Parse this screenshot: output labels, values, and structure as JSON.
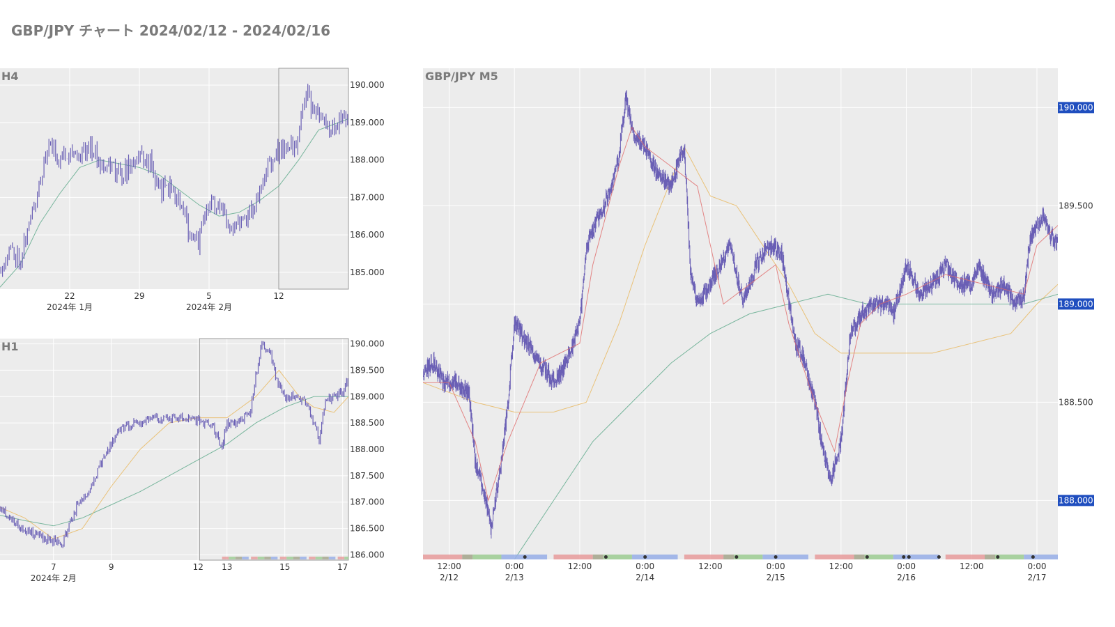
{
  "title": "GBP/JPY チャート 2024/02/12 - 2024/02/16",
  "colors": {
    "plot_bg": "#ececec",
    "grid": "#ffffff",
    "candle": "#6a5fb5",
    "ma_red": "#e06a6a",
    "ma_orange": "#e8b75a",
    "ma_green": "#5aa888",
    "badge": "#1f4ebf",
    "session_tokyo": "#e79b9b",
    "session_london": "#9ccd92",
    "session_ny": "#96aee8",
    "session_overlap": "#a3a58b",
    "event_dot": "#333333"
  },
  "chart_data": [
    {
      "id": "h4",
      "type": "candlestick",
      "title": "H4",
      "y_ticks": [
        "190.000",
        "189.000",
        "188.000",
        "187.000",
        "186.000",
        "185.000"
      ],
      "y_tick_values": [
        190,
        189,
        188,
        187,
        186,
        185
      ],
      "ylim": [
        184.55,
        190.45
      ],
      "x_range_days": [
        15,
        50
      ],
      "x_ticks": [
        {
          "label": "22",
          "sub": "2024年 1月",
          "day": 22
        },
        {
          "label": "29",
          "sub": "",
          "day": 29
        },
        {
          "label": "5",
          "sub": "2024年 2月",
          "day": 36
        },
        {
          "label": "12",
          "sub": "",
          "day": 43
        }
      ],
      "highlight_range_days": [
        43,
        50
      ],
      "price_path": [
        [
          15,
          185.1
        ],
        [
          16,
          185.6
        ],
        [
          17,
          185.4
        ],
        [
          18,
          186.3
        ],
        [
          19,
          187.5
        ],
        [
          20,
          188.4
        ],
        [
          21,
          188.0
        ],
        [
          22,
          188.3
        ],
        [
          23,
          188.1
        ],
        [
          24,
          188.4
        ],
        [
          25,
          188.0
        ],
        [
          26,
          187.9
        ],
        [
          27,
          187.6
        ],
        [
          28,
          187.8
        ],
        [
          29,
          188.1
        ],
        [
          30,
          188.0
        ],
        [
          31,
          187.2
        ],
        [
          32,
          187.3
        ],
        [
          33,
          186.9
        ],
        [
          34,
          186.1
        ],
        [
          35,
          185.8
        ],
        [
          36,
          186.9
        ],
        [
          37,
          186.7
        ],
        [
          38,
          186.3
        ],
        [
          39,
          186.4
        ],
        [
          40,
          186.6
        ],
        [
          41,
          187.0
        ],
        [
          42,
          187.9
        ],
        [
          43,
          188.2
        ],
        [
          44,
          188.5
        ],
        [
          44.5,
          188.1
        ],
        [
          45,
          188.6
        ],
        [
          45.7,
          189.9
        ],
        [
          46.3,
          189.4
        ],
        [
          47,
          189.1
        ],
        [
          48,
          188.8
        ],
        [
          49,
          189.0
        ],
        [
          50,
          189.3
        ]
      ],
      "ma_green": [
        [
          15,
          184.6
        ],
        [
          17,
          185.2
        ],
        [
          19,
          186.3
        ],
        [
          21,
          187.1
        ],
        [
          23,
          187.8
        ],
        [
          25,
          188.0
        ],
        [
          27,
          187.9
        ],
        [
          29,
          187.8
        ],
        [
          31,
          187.6
        ],
        [
          33,
          187.2
        ],
        [
          35,
          186.8
        ],
        [
          37,
          186.5
        ],
        [
          39,
          186.6
        ],
        [
          41,
          186.9
        ],
        [
          43,
          187.3
        ],
        [
          45,
          188.0
        ],
        [
          47,
          188.8
        ],
        [
          49,
          189.0
        ],
        [
          50,
          189.1
        ]
      ]
    },
    {
      "id": "h1",
      "type": "candlestick",
      "title": "H1",
      "y_ticks": [
        "190.000",
        "189.500",
        "189.000",
        "188.500",
        "188.000",
        "187.500",
        "187.000",
        "186.500",
        "186.000"
      ],
      "y_tick_values": [
        190,
        189.5,
        189,
        188.5,
        188,
        187.5,
        187,
        186.5,
        186
      ],
      "ylim": [
        185.9,
        190.1
      ],
      "x_range_days": [
        5.15,
        17.2
      ],
      "x_ticks": [
        {
          "label": "7",
          "sub": "2024年 2月",
          "day": 7
        },
        {
          "label": "9",
          "sub": "",
          "day": 9
        },
        {
          "label": "12",
          "sub": "",
          "day": 12
        },
        {
          "label": "13",
          "sub": "",
          "day": 13
        },
        {
          "label": "15",
          "sub": "",
          "day": 15
        },
        {
          "label": "17",
          "sub": "",
          "day": 17
        }
      ],
      "highlight_range_days": [
        12.05,
        17.2
      ],
      "price_path": [
        [
          5.15,
          186.9
        ],
        [
          5.5,
          186.7
        ],
        [
          5.9,
          186.5
        ],
        [
          6.3,
          186.4
        ],
        [
          6.8,
          186.3
        ],
        [
          7.3,
          186.2
        ],
        [
          7.8,
          186.9
        ],
        [
          8.3,
          187.3
        ],
        [
          8.8,
          187.9
        ],
        [
          9.3,
          188.4
        ],
        [
          9.9,
          188.5
        ],
        [
          10.4,
          188.6
        ],
        [
          11.5,
          188.6
        ],
        [
          12.1,
          188.5
        ],
        [
          12.5,
          188.5
        ],
        [
          12.8,
          188.0
        ],
        [
          13.0,
          188.5
        ],
        [
          13.4,
          188.5
        ],
        [
          13.8,
          188.7
        ],
        [
          14.0,
          189.4
        ],
        [
          14.2,
          190.0
        ],
        [
          14.5,
          189.8
        ],
        [
          14.8,
          189.2
        ],
        [
          15.0,
          189.0
        ],
        [
          15.3,
          189.0
        ],
        [
          15.7,
          188.9
        ],
        [
          16.0,
          188.5
        ],
        [
          16.2,
          188.2
        ],
        [
          16.4,
          188.9
        ],
        [
          16.7,
          189.0
        ],
        [
          17.0,
          189.1
        ],
        [
          17.2,
          189.3
        ]
      ],
      "ma_green": [
        [
          5.15,
          186.75
        ],
        [
          6,
          186.65
        ],
        [
          7,
          186.55
        ],
        [
          8,
          186.7
        ],
        [
          9,
          186.95
        ],
        [
          10,
          187.2
        ],
        [
          11,
          187.5
        ],
        [
          12,
          187.8
        ],
        [
          13,
          188.1
        ],
        [
          14,
          188.5
        ],
        [
          15,
          188.8
        ],
        [
          16,
          189.0
        ],
        [
          17.2,
          189.0
        ]
      ],
      "ma_orange": [
        [
          5.15,
          186.9
        ],
        [
          6,
          186.7
        ],
        [
          7,
          186.3
        ],
        [
          8,
          186.5
        ],
        [
          9,
          187.3
        ],
        [
          10,
          188.0
        ],
        [
          11,
          188.5
        ],
        [
          12,
          188.6
        ],
        [
          13,
          188.6
        ],
        [
          14,
          189.0
        ],
        [
          14.8,
          189.5
        ],
        [
          15.5,
          189.0
        ],
        [
          16,
          188.8
        ],
        [
          16.7,
          188.7
        ],
        [
          17.2,
          189.0
        ]
      ],
      "session_days": [
        13,
        14,
        15,
        16,
        17
      ]
    },
    {
      "id": "m5",
      "type": "candlestick",
      "title": "GBP/JPY M5",
      "y_ticks": [
        "190.000",
        "189.500",
        "189.000",
        "188.500",
        "188.000"
      ],
      "y_tick_values": [
        190,
        189.5,
        189,
        188.5,
        188
      ],
      "y_badges": [
        "190.000",
        "189.000",
        "188.000"
      ],
      "ylim": [
        187.7,
        190.2
      ],
      "x_range_days": [
        12.3,
        17.16
      ],
      "x_ticks": [
        {
          "label": "12:00",
          "sub": "2/12",
          "day": 12.5
        },
        {
          "label": "0:00",
          "sub": "2/13",
          "day": 13.0
        },
        {
          "label": "12:00",
          "sub": "",
          "day": 13.5
        },
        {
          "label": "0:00",
          "sub": "2/14",
          "day": 14.0
        },
        {
          "label": "12:00",
          "sub": "",
          "day": 14.5
        },
        {
          "label": "0:00",
          "sub": "2/15",
          "day": 15.0
        },
        {
          "label": "12:00",
          "sub": "",
          "day": 15.5
        },
        {
          "label": "0:00",
          "sub": "2/16",
          "day": 16.0
        },
        {
          "label": "12:00",
          "sub": "",
          "day": 16.5
        },
        {
          "label": "0:00",
          "sub": "2/17",
          "day": 17.0
        }
      ],
      "price_path": [
        [
          12.3,
          188.65
        ],
        [
          12.38,
          188.7
        ],
        [
          12.46,
          188.6
        ],
        [
          12.55,
          188.6
        ],
        [
          12.65,
          188.55
        ],
        [
          12.7,
          188.2
        ],
        [
          12.78,
          188.0
        ],
        [
          12.82,
          187.85
        ],
        [
          12.9,
          188.2
        ],
        [
          12.95,
          188.5
        ],
        [
          13.0,
          188.9
        ],
        [
          13.1,
          188.8
        ],
        [
          13.2,
          188.7
        ],
        [
          13.3,
          188.6
        ],
        [
          13.4,
          188.7
        ],
        [
          13.5,
          188.9
        ],
        [
          13.55,
          189.3
        ],
        [
          13.65,
          189.45
        ],
        [
          13.75,
          189.6
        ],
        [
          13.8,
          189.75
        ],
        [
          13.85,
          190.05
        ],
        [
          13.92,
          189.85
        ],
        [
          14.0,
          189.8
        ],
        [
          14.1,
          189.65
        ],
        [
          14.2,
          189.6
        ],
        [
          14.3,
          189.8
        ],
        [
          14.35,
          189.15
        ],
        [
          14.4,
          189.0
        ],
        [
          14.5,
          189.1
        ],
        [
          14.65,
          189.3
        ],
        [
          14.75,
          189.0
        ],
        [
          14.85,
          189.2
        ],
        [
          14.95,
          189.3
        ],
        [
          15.05,
          189.25
        ],
        [
          15.15,
          188.8
        ],
        [
          15.2,
          188.75
        ],
        [
          15.3,
          188.5
        ],
        [
          15.35,
          188.3
        ],
        [
          15.42,
          188.1
        ],
        [
          15.5,
          188.3
        ],
        [
          15.57,
          188.85
        ],
        [
          15.65,
          188.95
        ],
        [
          15.75,
          189.0
        ],
        [
          15.85,
          189.0
        ],
        [
          15.9,
          188.95
        ],
        [
          16.0,
          189.2
        ],
        [
          16.1,
          189.05
        ],
        [
          16.2,
          189.1
        ],
        [
          16.3,
          189.2
        ],
        [
          16.4,
          189.1
        ],
        [
          16.5,
          189.1
        ],
        [
          16.55,
          189.2
        ],
        [
          16.65,
          189.05
        ],
        [
          16.75,
          189.1
        ],
        [
          16.82,
          189.0
        ],
        [
          16.9,
          189.05
        ],
        [
          16.95,
          189.35
        ],
        [
          17.0,
          189.4
        ],
        [
          17.05,
          189.45
        ],
        [
          17.1,
          189.35
        ],
        [
          17.16,
          189.3
        ]
      ],
      "ma_red": [
        [
          12.3,
          188.6
        ],
        [
          12.5,
          188.6
        ],
        [
          12.7,
          188.3
        ],
        [
          12.8,
          188.0
        ],
        [
          12.95,
          188.3
        ],
        [
          13.2,
          188.7
        ],
        [
          13.5,
          188.8
        ],
        [
          13.6,
          189.2
        ],
        [
          13.8,
          189.7
        ],
        [
          13.9,
          189.9
        ],
        [
          14.0,
          189.8
        ],
        [
          14.2,
          189.7
        ],
        [
          14.4,
          189.6
        ],
        [
          14.6,
          189.0
        ],
        [
          14.8,
          189.1
        ],
        [
          15.0,
          189.2
        ],
        [
          15.1,
          188.9
        ],
        [
          15.3,
          188.5
        ],
        [
          15.45,
          188.25
        ],
        [
          15.55,
          188.6
        ],
        [
          15.65,
          188.9
        ],
        [
          15.8,
          189.0
        ],
        [
          16.0,
          189.05
        ],
        [
          16.3,
          189.15
        ],
        [
          16.6,
          189.1
        ],
        [
          16.9,
          189.05
        ],
        [
          17.0,
          189.3
        ],
        [
          17.16,
          189.4
        ]
      ],
      "ma_orange": [
        [
          12.3,
          188.6
        ],
        [
          12.7,
          188.5
        ],
        [
          13.0,
          188.45
        ],
        [
          13.3,
          188.45
        ],
        [
          13.55,
          188.5
        ],
        [
          13.8,
          188.9
        ],
        [
          14.0,
          189.3
        ],
        [
          14.3,
          189.8
        ],
        [
          14.5,
          189.55
        ],
        [
          14.7,
          189.5
        ],
        [
          14.9,
          189.3
        ],
        [
          15.1,
          189.1
        ],
        [
          15.3,
          188.85
        ],
        [
          15.5,
          188.75
        ],
        [
          15.7,
          188.75
        ],
        [
          15.9,
          188.75
        ],
        [
          16.2,
          188.75
        ],
        [
          16.5,
          188.8
        ],
        [
          16.8,
          188.85
        ],
        [
          17.0,
          189.0
        ],
        [
          17.16,
          189.1
        ]
      ],
      "ma_green": [
        [
          13.0,
          187.7
        ],
        [
          13.3,
          188.0
        ],
        [
          13.6,
          188.3
        ],
        [
          13.9,
          188.5
        ],
        [
          14.2,
          188.7
        ],
        [
          14.5,
          188.85
        ],
        [
          14.8,
          188.95
        ],
        [
          15.1,
          189.0
        ],
        [
          15.4,
          189.05
        ],
        [
          15.7,
          189.0
        ],
        [
          16.0,
          189.0
        ],
        [
          16.3,
          189.0
        ],
        [
          16.6,
          189.0
        ],
        [
          16.9,
          189.0
        ],
        [
          17.16,
          189.05
        ]
      ],
      "sessions": [
        12.3,
        13.3,
        14.3,
        15.3,
        16.3
      ],
      "event_dots": [
        13.08,
        13.7,
        14.0,
        14.7,
        15.0,
        15.7,
        15.98,
        16.02,
        16.25,
        16.7,
        16.97
      ]
    }
  ]
}
